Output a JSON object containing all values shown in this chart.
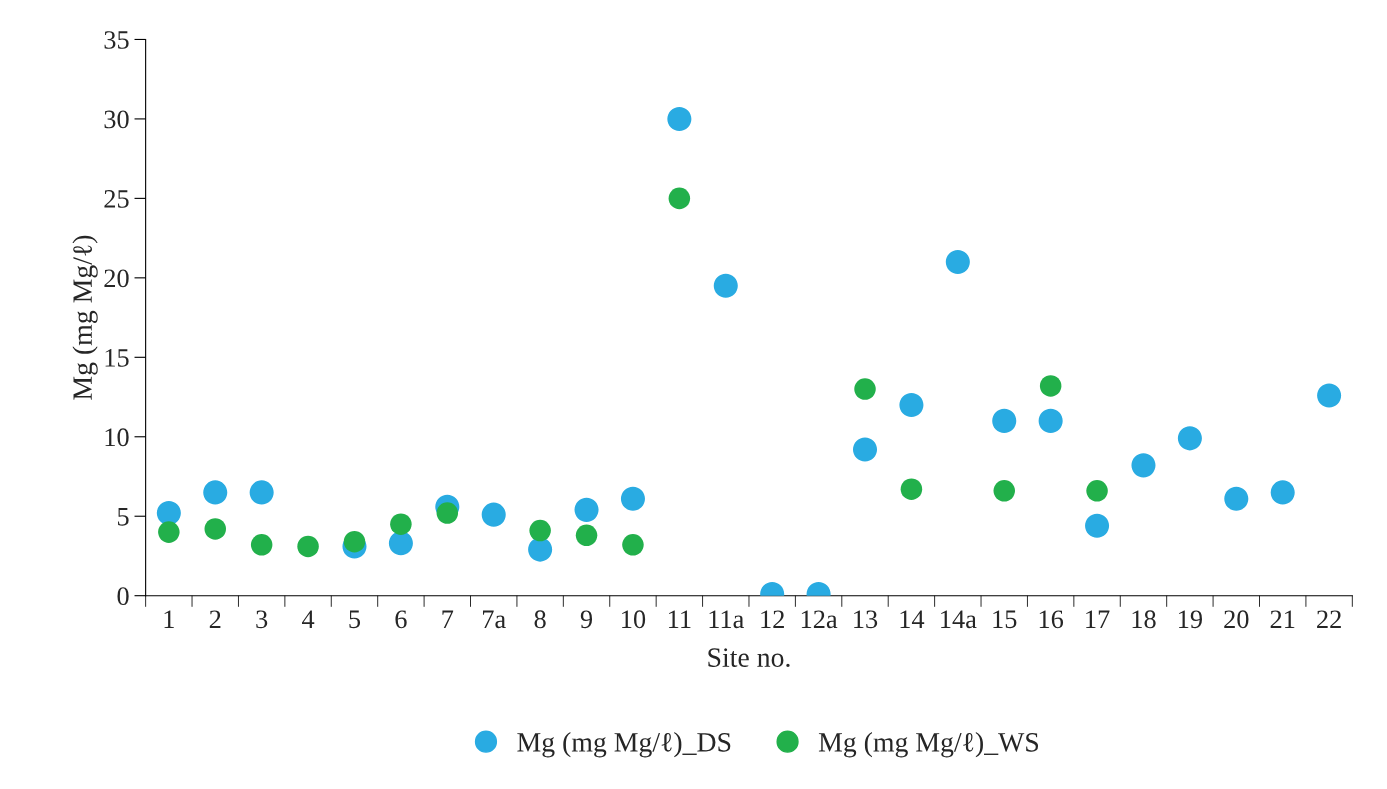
{
  "chart_data": {
    "type": "scatter",
    "xlabel": "Site no.",
    "ylabel": "Mg (mg Mg/ℓ)",
    "categories": [
      "1",
      "2",
      "3",
      "4",
      "5",
      "6",
      "7",
      "7a",
      "8",
      "9",
      "10",
      "11",
      "11a",
      "12",
      "12a",
      "13",
      "14",
      "14a",
      "15",
      "16",
      "17",
      "18",
      "19",
      "20",
      "21",
      "22"
    ],
    "series": [
      {
        "name": "Mg (mg Mg/ℓ)_DS",
        "color": "#29abe2",
        "values": [
          5.2,
          6.5,
          6.5,
          null,
          3.1,
          3.3,
          5.6,
          5.1,
          2.9,
          5.4,
          6.1,
          30,
          19.5,
          0.1,
          0.1,
          9.2,
          12.0,
          21,
          11.0,
          11.0,
          4.4,
          8.2,
          9.9,
          6.1,
          6.5,
          12.6
        ]
      },
      {
        "name": "Mg (mg Mg/ℓ)_WS",
        "color": "#22b04b",
        "values": [
          4.0,
          4.2,
          3.2,
          3.1,
          3.4,
          4.5,
          5.2,
          null,
          4.1,
          3.8,
          3.2,
          25,
          null,
          null,
          null,
          13,
          6.7,
          null,
          6.6,
          13.2,
          6.6,
          null,
          null,
          null,
          null,
          null
        ]
      }
    ],
    "ylim": [
      0,
      35
    ],
    "yticks": [
      0,
      5,
      10,
      15,
      20,
      25,
      30,
      35
    ],
    "grid": false,
    "legend": "bottom",
    "marker": "circle"
  }
}
